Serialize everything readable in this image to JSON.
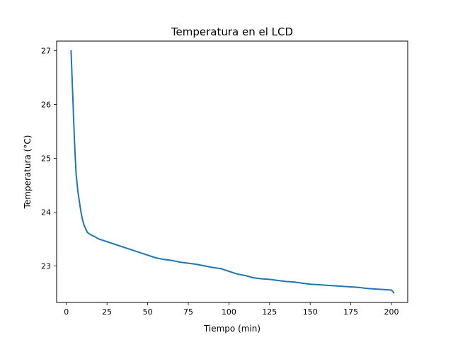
{
  "chart_data": {
    "type": "line",
    "title": "Temperatura en el LCD",
    "xlabel": "Tiempo (min)",
    "ylabel": "Temperatura (°C)",
    "xlim": [
      -6,
      210
    ],
    "ylim": [
      22.32,
      27.18
    ],
    "x_ticks": [
      0,
      25,
      50,
      75,
      100,
      125,
      150,
      175,
      200
    ],
    "y_ticks": [
      23,
      24,
      25,
      26,
      27
    ],
    "grid": false,
    "legend": "none",
    "colors": {
      "line": "#1f77b4",
      "axes": "#000000",
      "background": "#ffffff"
    },
    "series": [
      {
        "x": [
          2.9,
          3.5,
          4.0,
          4.5,
          5.0,
          5.5,
          6.0,
          7.0,
          8.0,
          9.0,
          10.0,
          11.0,
          12.0,
          13.0,
          15.0,
          17.0,
          20.0,
          23.0,
          26.0,
          30.0,
          35.0,
          40.0,
          45.0,
          50.0,
          55.0,
          60.0,
          65.0,
          70.0,
          75.0,
          80.0,
          85.0,
          90.0,
          95.0,
          100.0,
          105.0,
          110.0,
          115.0,
          120.0,
          125.0,
          130.0,
          135.0,
          140.0,
          145.0,
          150.0,
          155.0,
          160.0,
          165.0,
          170.0,
          175.0,
          180.0,
          185.0,
          190.0,
          195.0,
          200.0,
          201.5
        ],
        "values": [
          27.0,
          26.5,
          26.1,
          25.7,
          25.3,
          25.0,
          24.7,
          24.4,
          24.2,
          24.0,
          23.85,
          23.75,
          23.68,
          23.62,
          23.58,
          23.55,
          23.5,
          23.47,
          23.44,
          23.4,
          23.35,
          23.3,
          23.25,
          23.2,
          23.15,
          23.12,
          23.1,
          23.07,
          23.05,
          23.03,
          23.0,
          22.97,
          22.95,
          22.9,
          22.85,
          22.82,
          22.78,
          22.76,
          22.75,
          22.73,
          22.71,
          22.7,
          22.68,
          22.66,
          22.65,
          22.64,
          22.63,
          22.62,
          22.61,
          22.6,
          22.58,
          22.57,
          22.56,
          22.55,
          22.5
        ]
      }
    ]
  }
}
